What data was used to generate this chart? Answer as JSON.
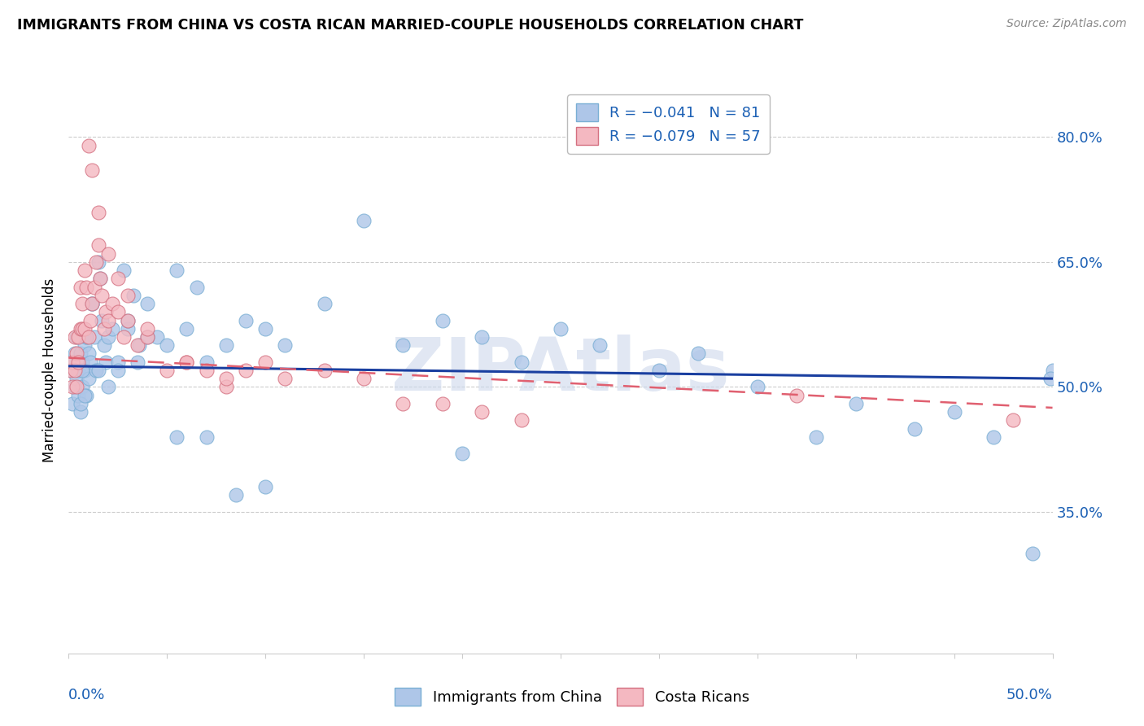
{
  "title": "IMMIGRANTS FROM CHINA VS COSTA RICAN MARRIED-COUPLE HOUSEHOLDS CORRELATION CHART",
  "source": "Source: ZipAtlas.com",
  "ylabel": "Married-couple Households",
  "y_ticks": [
    0.35,
    0.5,
    0.65,
    0.8
  ],
  "y_tick_labels": [
    "35.0%",
    "50.0%",
    "65.0%",
    "80.0%"
  ],
  "x_range": [
    0.0,
    0.5
  ],
  "y_range": [
    0.18,
    0.86
  ],
  "legend_R_color": "#1a5fb4",
  "china_color": "#aec6e8",
  "china_edge_color": "#7aafd4",
  "costa_color": "#f4b8c1",
  "costa_edge_color": "#d47080",
  "trendline_china_color": "#1a3fa0",
  "trendline_costa_color": "#e06070",
  "background_color": "#ffffff",
  "watermark": "ZIPAtlas",
  "watermark_color": "#cdd8ec",
  "china_x": [
    0.001,
    0.002,
    0.002,
    0.003,
    0.003,
    0.004,
    0.004,
    0.005,
    0.005,
    0.006,
    0.006,
    0.007,
    0.007,
    0.008,
    0.008,
    0.009,
    0.009,
    0.01,
    0.01,
    0.011,
    0.012,
    0.013,
    0.014,
    0.015,
    0.016,
    0.017,
    0.018,
    0.019,
    0.02,
    0.022,
    0.025,
    0.028,
    0.03,
    0.033,
    0.036,
    0.04,
    0.045,
    0.05,
    0.055,
    0.06,
    0.065,
    0.07,
    0.08,
    0.09,
    0.1,
    0.11,
    0.13,
    0.15,
    0.17,
    0.19,
    0.21,
    0.23,
    0.25,
    0.27,
    0.3,
    0.32,
    0.35,
    0.38,
    0.4,
    0.43,
    0.45,
    0.47,
    0.49,
    0.5,
    0.006,
    0.007,
    0.008,
    0.009,
    0.012,
    0.015,
    0.02,
    0.025,
    0.03,
    0.035,
    0.04,
    0.055,
    0.07,
    0.085,
    0.1,
    0.2,
    0.499
  ],
  "china_y": [
    0.52,
    0.53,
    0.48,
    0.54,
    0.5,
    0.51,
    0.56,
    0.52,
    0.49,
    0.54,
    0.47,
    0.53,
    0.5,
    0.55,
    0.52,
    0.56,
    0.49,
    0.54,
    0.51,
    0.53,
    0.6,
    0.56,
    0.52,
    0.65,
    0.63,
    0.58,
    0.55,
    0.53,
    0.56,
    0.57,
    0.53,
    0.64,
    0.57,
    0.61,
    0.55,
    0.6,
    0.56,
    0.55,
    0.64,
    0.57,
    0.62,
    0.53,
    0.55,
    0.58,
    0.57,
    0.55,
    0.6,
    0.7,
    0.55,
    0.58,
    0.56,
    0.53,
    0.57,
    0.55,
    0.52,
    0.54,
    0.5,
    0.44,
    0.48,
    0.45,
    0.47,
    0.44,
    0.3,
    0.52,
    0.48,
    0.52,
    0.49,
    0.56,
    0.6,
    0.52,
    0.5,
    0.52,
    0.58,
    0.53,
    0.56,
    0.44,
    0.44,
    0.37,
    0.38,
    0.42,
    0.51
  ],
  "costa_x": [
    0.001,
    0.002,
    0.002,
    0.003,
    0.003,
    0.004,
    0.004,
    0.005,
    0.005,
    0.006,
    0.006,
    0.007,
    0.007,
    0.008,
    0.008,
    0.009,
    0.01,
    0.011,
    0.012,
    0.013,
    0.014,
    0.015,
    0.016,
    0.017,
    0.018,
    0.019,
    0.02,
    0.022,
    0.025,
    0.028,
    0.03,
    0.035,
    0.04,
    0.05,
    0.06,
    0.07,
    0.08,
    0.09,
    0.1,
    0.11,
    0.13,
    0.15,
    0.17,
    0.19,
    0.21,
    0.23,
    0.01,
    0.012,
    0.015,
    0.02,
    0.025,
    0.03,
    0.04,
    0.06,
    0.08,
    0.37,
    0.48
  ],
  "costa_y": [
    0.52,
    0.53,
    0.5,
    0.56,
    0.52,
    0.54,
    0.5,
    0.56,
    0.53,
    0.57,
    0.62,
    0.57,
    0.6,
    0.64,
    0.57,
    0.62,
    0.56,
    0.58,
    0.6,
    0.62,
    0.65,
    0.67,
    0.63,
    0.61,
    0.57,
    0.59,
    0.58,
    0.6,
    0.59,
    0.56,
    0.58,
    0.55,
    0.56,
    0.52,
    0.53,
    0.52,
    0.5,
    0.52,
    0.53,
    0.51,
    0.52,
    0.51,
    0.48,
    0.48,
    0.47,
    0.46,
    0.79,
    0.76,
    0.71,
    0.66,
    0.63,
    0.61,
    0.57,
    0.53,
    0.51,
    0.49,
    0.46
  ],
  "trendline_china_x0": 0.0,
  "trendline_china_x1": 0.5,
  "trendline_china_y0": 0.525,
  "trendline_china_y1": 0.51,
  "trendline_costa_x0": 0.0,
  "trendline_costa_x1": 0.5,
  "trendline_costa_y0": 0.535,
  "trendline_costa_y1": 0.475
}
